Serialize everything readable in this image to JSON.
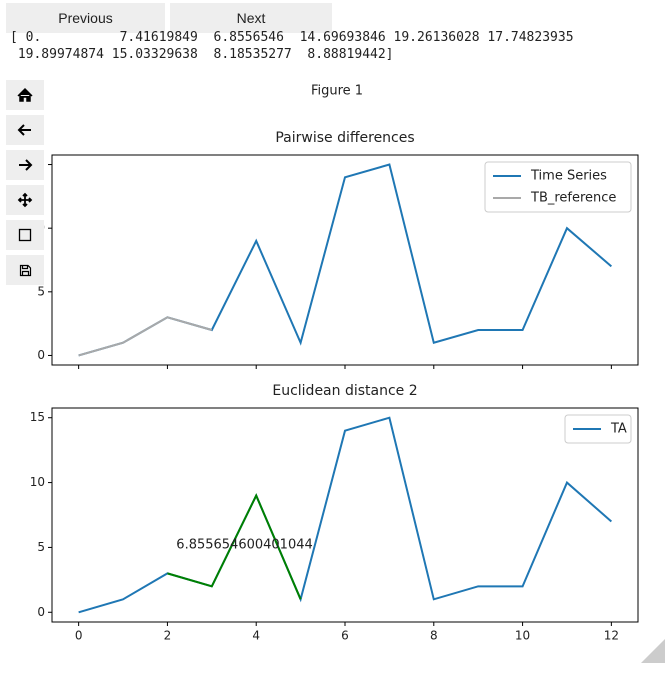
{
  "buttons": [
    "Previous",
    "Next"
  ],
  "output": "[ 0.          7.41619849  6.8556546  14.69693846 19.26136028 17.74823935\n 19.89974874 15.03329638  8.18535277  8.88819442]",
  "figure_title": "Figure 1",
  "chart_data": [
    {
      "type": "line",
      "title": "Pairwise differences",
      "sharex": true,
      "x": [
        0,
        1,
        2,
        3,
        4,
        5,
        6,
        7,
        8,
        9,
        10,
        11,
        12
      ],
      "series": [
        {
          "name": "Time Series",
          "color": "#1f77b4",
          "values": [
            0,
            1,
            3,
            2,
            9,
            1,
            14,
            15,
            1,
            2,
            2,
            10,
            7
          ]
        },
        {
          "name": "TB_reference",
          "color": "#a9a9a9",
          "values": [
            0,
            1,
            3,
            2,
            null,
            null,
            null,
            null,
            null,
            null,
            null,
            null,
            null
          ]
        }
      ],
      "xlim": [
        -0.6,
        12.6
      ],
      "ylim": [
        -0.75,
        15.75
      ],
      "xticks": [
        0,
        2,
        4,
        6,
        8,
        10,
        12
      ],
      "yticks": [
        0,
        5,
        10,
        15
      ],
      "legend": "upper right"
    },
    {
      "type": "line",
      "title": "Euclidean distance 2",
      "x": [
        0,
        1,
        2,
        3,
        4,
        5,
        6,
        7,
        8,
        9,
        10,
        11,
        12
      ],
      "series": [
        {
          "name": "TA",
          "color": "#1f77b4",
          "values": [
            0,
            1,
            3,
            2,
            9,
            1,
            14,
            15,
            1,
            2,
            2,
            10,
            7
          ]
        },
        {
          "color": "#008000",
          "values": [
            null,
            null,
            3,
            2,
            9,
            1,
            null,
            null,
            null,
            null,
            null,
            null,
            null
          ]
        }
      ],
      "annotations": [
        {
          "text": "6.855654600401044",
          "x": 2.2,
          "y": 5.2
        }
      ],
      "xlim": [
        -0.6,
        12.6
      ],
      "ylim": [
        -0.75,
        15.75
      ],
      "xticks": [
        0,
        2,
        4,
        6,
        8,
        10,
        12
      ],
      "yticks": [
        0,
        5,
        10,
        15
      ],
      "legend": "upper right"
    }
  ]
}
